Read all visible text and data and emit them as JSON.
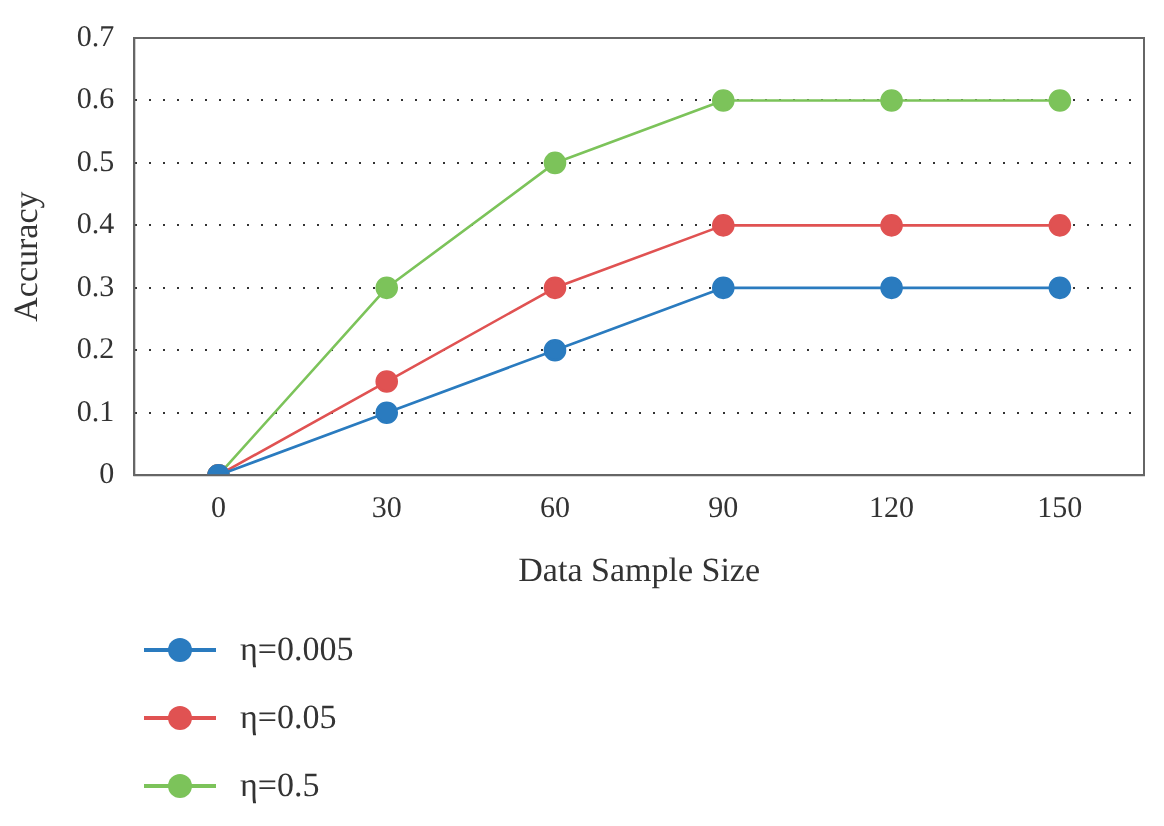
{
  "chart_data": {
    "type": "line",
    "xlabel": "Data Sample Size",
    "ylabel": "Accuracy",
    "categories": [
      "0",
      "30",
      "60",
      "90",
      "120",
      "150"
    ],
    "series": [
      {
        "name": "η=0.005",
        "color": "#2a7bbf",
        "values": [
          0,
          0.1,
          0.2,
          0.3,
          0.3,
          0.3
        ]
      },
      {
        "name": "η=0.05",
        "color": "#e05252",
        "values": [
          0,
          0.15,
          0.3,
          0.4,
          0.4,
          0.4
        ]
      },
      {
        "name": "η=0.5",
        "color": "#7cc35a",
        "values": [
          0,
          0.3,
          0.5,
          0.6,
          0.6,
          0.6
        ]
      }
    ],
    "ylim": [
      0,
      0.7
    ],
    "yticks": [
      0,
      0.1,
      0.2,
      0.3,
      0.4,
      0.5,
      0.6,
      0.7
    ],
    "grid": "y",
    "legend": "bottom",
    "marker": "circle",
    "line_style": "solid"
  }
}
